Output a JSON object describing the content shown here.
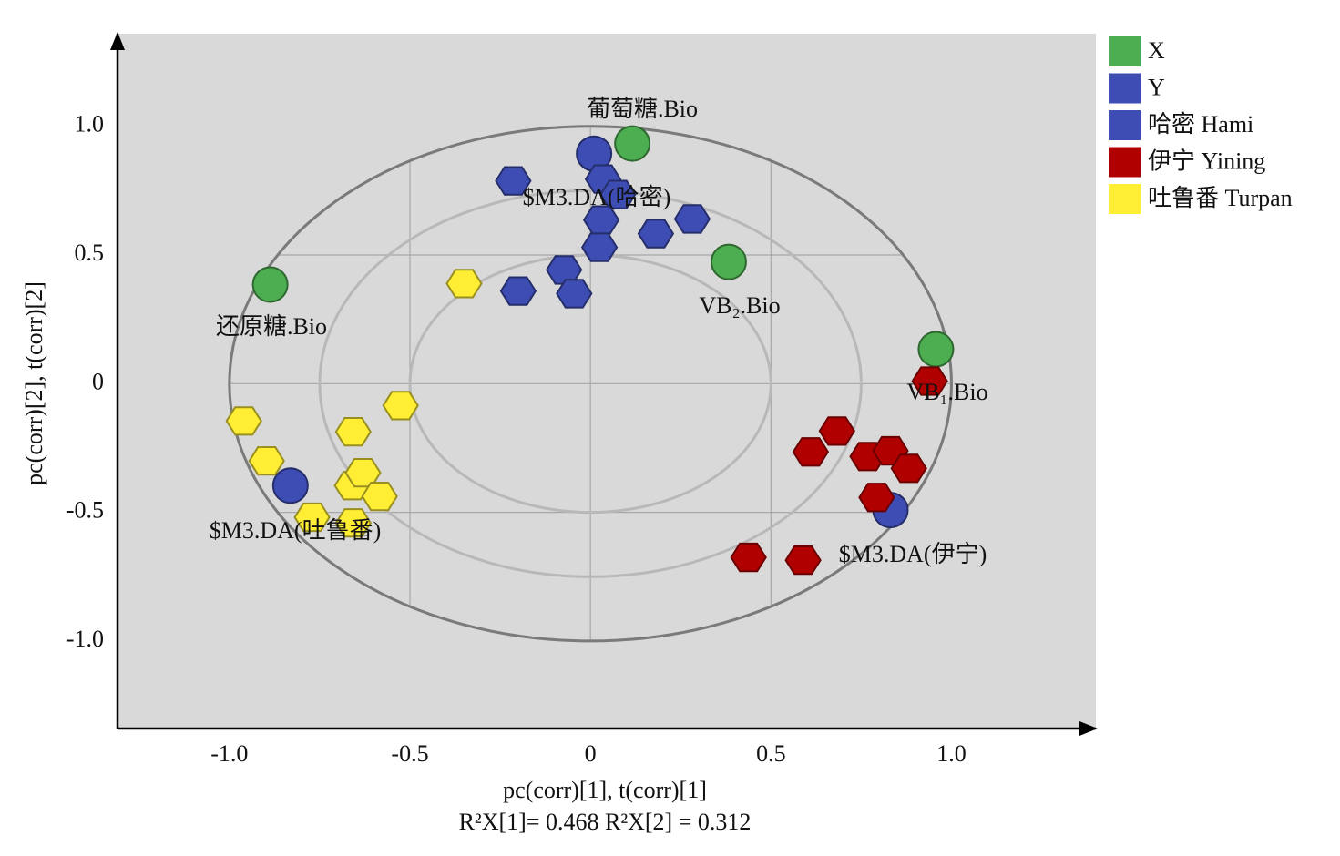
{
  "chart_data": {
    "type": "scatter",
    "x_label": "pc(corr)[1], t(corr)[1]",
    "x_label_2": "R²X[1]= 0.468 R²X[2] = 0.312",
    "y_label": "pc(corr)[2], t(corr)[2]",
    "xlim": [
      -1.31,
      1.4
    ],
    "ylim": [
      -1.34,
      1.36
    ],
    "xticks": [
      {
        "value": -1,
        "label": "-1.0"
      },
      -0.5,
      0,
      0.5,
      {
        "value": 1,
        "label": "1.0"
      }
    ],
    "yticks": [
      {
        "value": -1,
        "label": "-1.0"
      },
      -0.5,
      0,
      0.5,
      {
        "value": 1,
        "label": "1.0"
      }
    ],
    "grid": true,
    "reference_circles": [
      1,
      0.75,
      0.5
    ],
    "legend": "outside-right",
    "series": [
      {
        "name": "X",
        "color": "#4cae50",
        "marker": "circle",
        "x": [
          -0.887,
          0.116,
          0.383,
          0.957
        ],
        "y": [
          0.385,
          0.933,
          0.473,
          0.134
        ]
      },
      {
        "name": "Y",
        "color": "#3d4db3",
        "marker": "circle",
        "x": [
          0.01,
          -0.831,
          0.831
        ],
        "y": [
          0.894,
          -0.396,
          -0.491
        ]
      },
      {
        "name": "哈密 Hami",
        "color": "#3d4db3",
        "marker": "hexagon",
        "x": [
          -0.214,
          0.035,
          0.076,
          0.282,
          0.03,
          0.181,
          0.025,
          -0.073,
          -0.045,
          -0.2
        ],
        "y": [
          0.788,
          0.795,
          0.735,
          0.64,
          0.636,
          0.583,
          0.53,
          0.442,
          0.35,
          0.36
        ]
      },
      {
        "name": "伊宁 Yining",
        "color": "#b00000",
        "marker": "hexagon",
        "x": [
          0.94,
          0.683,
          0.61,
          0.768,
          0.831,
          0.882,
          0.793,
          0.438,
          0.589
        ],
        "y": [
          0.01,
          -0.184,
          -0.265,
          -0.283,
          -0.261,
          -0.329,
          -0.442,
          -0.675,
          -0.686
        ]
      },
      {
        "name": "吐鲁番 Turpan",
        "color": "#ffee33",
        "marker": "hexagon",
        "x": [
          -0.35,
          -0.526,
          -0.96,
          -0.657,
          -0.897,
          -0.66,
          -0.63,
          -0.584,
          -0.771,
          -0.657
        ],
        "y": [
          0.389,
          -0.085,
          -0.145,
          -0.187,
          -0.3,
          -0.396,
          -0.346,
          -0.438,
          -0.519,
          -0.541
        ]
      }
    ],
    "annotations": [
      "葡萄糖.Bio",
      "$M3.DA(哈密)",
      "还原糖.Bio",
      "VB₂.Bio",
      "VB₁.Bio",
      "$M3.DA(吐鲁番)",
      "$M3.DA(伊宁)"
    ]
  }
}
